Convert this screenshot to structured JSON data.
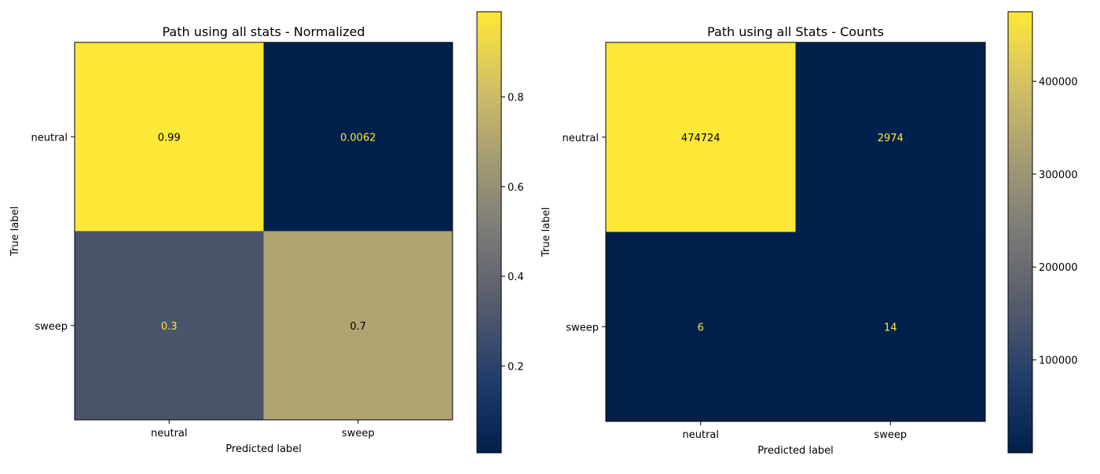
{
  "chart_data": [
    {
      "type": "heatmap",
      "title": "Path using all stats - Normalized",
      "xlabel": "Predicted label",
      "ylabel": "True label",
      "x_categories": [
        "neutral",
        "sweep"
      ],
      "y_categories": [
        "neutral",
        "sweep"
      ],
      "values": [
        [
          0.99,
          0.0062
        ],
        [
          0.3,
          0.7
        ]
      ],
      "cell_labels": [
        [
          "0.99",
          "0.0062"
        ],
        [
          "0.3",
          "0.7"
        ]
      ],
      "colormap": "cividis",
      "color_range": [
        0.0062,
        0.99
      ],
      "colorbar_ticks": [
        {
          "value": 0.2,
          "label": "0.2"
        },
        {
          "value": 0.4,
          "label": "0.4"
        },
        {
          "value": 0.6,
          "label": "0.6"
        },
        {
          "value": 0.8,
          "label": "0.8"
        }
      ]
    },
    {
      "type": "heatmap",
      "title": "Path using all Stats - Counts",
      "xlabel": "Predicted label",
      "ylabel": "True label",
      "x_categories": [
        "neutral",
        "sweep"
      ],
      "y_categories": [
        "neutral",
        "sweep"
      ],
      "values": [
        [
          474724,
          2974
        ],
        [
          6,
          14
        ]
      ],
      "cell_labels": [
        [
          "474724",
          "2974"
        ],
        [
          "6",
          "14"
        ]
      ],
      "colormap": "cividis",
      "color_range": [
        6,
        474724
      ],
      "colorbar_ticks": [
        {
          "value": 100000,
          "label": "100000"
        },
        {
          "value": 200000,
          "label": "200000"
        },
        {
          "value": 300000,
          "label": "300000"
        },
        {
          "value": 400000,
          "label": "400000"
        }
      ]
    }
  ],
  "colors": {
    "cell_text_light": "#fde737",
    "cell_text_dark": "#000000",
    "cividis_stops": [
      "#00204c",
      "#213d6b",
      "#555b6c",
      "#7b7a77",
      "#a59c74",
      "#d3c064",
      "#fee837"
    ]
  }
}
